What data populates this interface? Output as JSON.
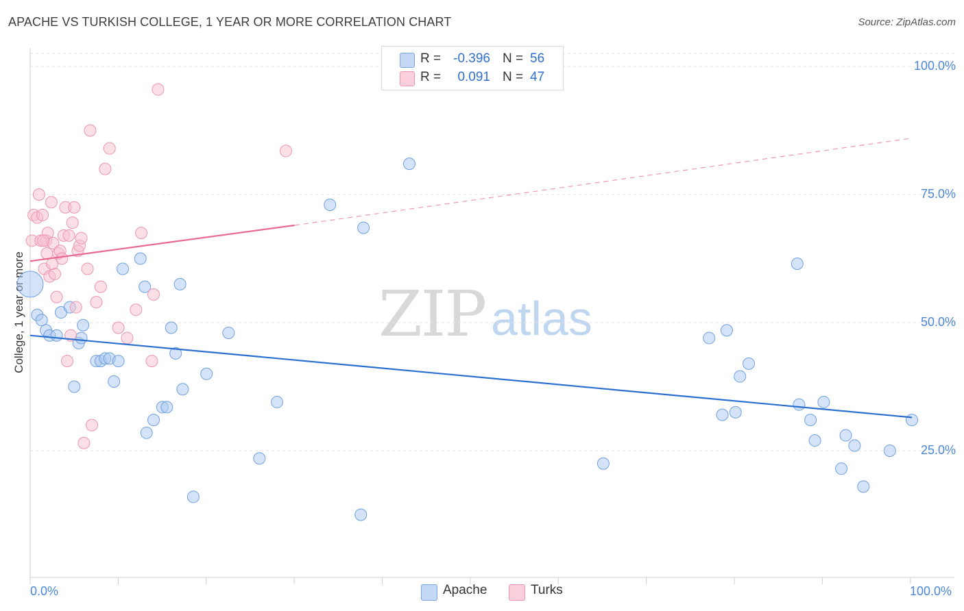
{
  "chart_data": {
    "type": "scatter",
    "title": "APACHE VS TURKISH COLLEGE, 1 YEAR OR MORE CORRELATION CHART",
    "source": "Source: ZipAtlas.com",
    "xlabel": "",
    "ylabel": "College, 1 year or more",
    "xlim": [
      0,
      100
    ],
    "ylim": [
      0,
      102
    ],
    "x_tick_labels": [
      "0.0%",
      "100.0%"
    ],
    "y_ticks": [
      25,
      50,
      75,
      100
    ],
    "y_tick_labels": [
      "25.0%",
      "50.0%",
      "75.0%",
      "100.0%"
    ],
    "watermark": "ZIPatlas",
    "legend": {
      "rows": [
        {
          "r_label": "R =",
          "r_value": "-0.396",
          "n_label": "N =",
          "n_value": "56",
          "color": "#aac8f0",
          "border": "#7aa6e0"
        },
        {
          "r_label": "R =",
          "r_value": "0.091",
          "n_label": "N =",
          "n_value": "47",
          "color": "#f8bfd0",
          "border": "#ec94b0"
        }
      ]
    },
    "series": [
      {
        "name": "Apache",
        "color": "#aac8f0",
        "stroke": "#6fa0e0",
        "trend_color": "#2a6fcf",
        "trend": {
          "x0": 0,
          "y0": 47.5,
          "x1": 100,
          "y1": 31.5
        },
        "points": [
          [
            0,
            57.5,
            "big"
          ],
          [
            0.8,
            51.5
          ],
          [
            1.3,
            50.5
          ],
          [
            1.8,
            48.5
          ],
          [
            2.2,
            47.5
          ],
          [
            3,
            47.5
          ],
          [
            3.5,
            52
          ],
          [
            4.5,
            53
          ],
          [
            5.0,
            37.5
          ],
          [
            5.5,
            46
          ],
          [
            5.8,
            47
          ],
          [
            6,
            49.5
          ],
          [
            7.5,
            42.5
          ],
          [
            8,
            42.5
          ],
          [
            8.5,
            43
          ],
          [
            9,
            43
          ],
          [
            9.5,
            38.5
          ],
          [
            10.0,
            42.5
          ],
          [
            10.5,
            60.5
          ],
          [
            13,
            57
          ],
          [
            12.5,
            62.5
          ],
          [
            13.2,
            28.5
          ],
          [
            14,
            31
          ],
          [
            15,
            33.5
          ],
          [
            15.5,
            33.5
          ],
          [
            16,
            49
          ],
          [
            16.5,
            44
          ],
          [
            17,
            57.5
          ],
          [
            17.3,
            37
          ],
          [
            18.5,
            16
          ],
          [
            20,
            40
          ],
          [
            22.5,
            48
          ],
          [
            26,
            23.5
          ],
          [
            28,
            34.5
          ],
          [
            34,
            73
          ],
          [
            37.5,
            12.5
          ],
          [
            37.8,
            68.5
          ],
          [
            43,
            81
          ],
          [
            65,
            22.5
          ],
          [
            77,
            47
          ],
          [
            78.5,
            32
          ],
          [
            79,
            48.5
          ],
          [
            80,
            32.5
          ],
          [
            80.5,
            39.5
          ],
          [
            81.5,
            42
          ],
          [
            87,
            61.5
          ],
          [
            87.2,
            34
          ],
          [
            88.5,
            31
          ],
          [
            89,
            27
          ],
          [
            90,
            34.5
          ],
          [
            92,
            21.5
          ],
          [
            92.5,
            28
          ],
          [
            93.5,
            26
          ],
          [
            94.5,
            18
          ],
          [
            97.5,
            25
          ],
          [
            100,
            31
          ]
        ]
      },
      {
        "name": "Turks",
        "color": "#f8bfd0",
        "stroke": "#ec94b0",
        "trend_color": "#e86a90",
        "trend": {
          "x0": 0,
          "y0": 62,
          "x1": 30,
          "y1": 69
        },
        "trend_extension": {
          "x0": 30,
          "y0": 69,
          "x1": 100,
          "y1": 86
        },
        "points": [
          [
            0.2,
            66
          ],
          [
            0.4,
            71
          ],
          [
            0.8,
            70.5
          ],
          [
            1,
            75
          ],
          [
            1.2,
            66
          ],
          [
            1.4,
            71
          ],
          [
            1.6,
            60.5
          ],
          [
            1.8,
            66
          ],
          [
            1.9,
            63.5
          ],
          [
            2,
            67.5
          ],
          [
            2.2,
            59
          ],
          [
            2.4,
            73.5
          ],
          [
            2.6,
            65.5
          ],
          [
            2.8,
            59.5
          ],
          [
            3,
            55
          ],
          [
            3.2,
            63.5
          ],
          [
            3.4,
            64
          ],
          [
            3.6,
            62.5
          ],
          [
            3.8,
            67
          ],
          [
            4,
            72.5
          ],
          [
            4.2,
            42.5
          ],
          [
            4.4,
            67
          ],
          [
            4.6,
            47.5
          ],
          [
            4.8,
            69.5
          ],
          [
            5,
            72.5
          ],
          [
            5.2,
            53
          ],
          [
            5.4,
            64
          ],
          [
            5.6,
            65
          ],
          [
            5.8,
            66.5
          ],
          [
            6.1,
            26.5
          ],
          [
            6.5,
            60.5
          ],
          [
            6.8,
            87.5
          ],
          [
            7.0,
            30
          ],
          [
            7.5,
            54
          ],
          [
            8.0,
            57
          ],
          [
            8.5,
            80
          ],
          [
            9,
            84
          ],
          [
            10,
            49
          ],
          [
            11,
            47
          ],
          [
            12,
            52.5
          ],
          [
            12.6,
            67.5
          ],
          [
            13.8,
            42.5
          ],
          [
            14,
            55.5
          ],
          [
            14.5,
            95.5
          ],
          [
            29,
            83.5
          ],
          [
            1.5,
            66
          ],
          [
            2.5,
            61.5
          ]
        ]
      }
    ]
  },
  "bottom_legend": [
    {
      "label": "Apache"
    },
    {
      "label": "Turks"
    }
  ]
}
